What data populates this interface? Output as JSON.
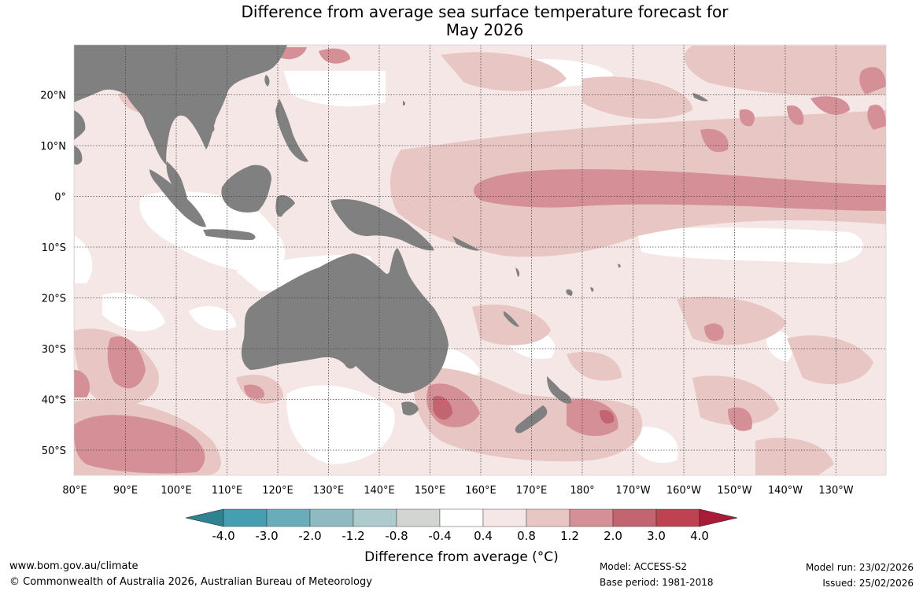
{
  "title": {
    "line1": "Difference from average sea surface temperature forecast for",
    "line2": "May 2026"
  },
  "map": {
    "lat_labels": [
      "20°N",
      "10°N",
      "0°",
      "10°S",
      "20°S",
      "30°S",
      "40°S",
      "50°S"
    ],
    "lon_labels": [
      "80°E",
      "90°E",
      "100°E",
      "110°E",
      "120°E",
      "130°E",
      "140°E",
      "150°E",
      "160°E",
      "170°E",
      "180°",
      "170°W",
      "160°W",
      "150°W",
      "140°W",
      "130°W"
    ],
    "colors": {
      "land": "#808080",
      "ocean_neutral": "#ffffff",
      "c04_08": "#f4e7e6",
      "c08_12": "#e8c6c4",
      "c12_20": "#d58f96",
      "c20_30": "#c36571",
      "grid": "#444444"
    }
  },
  "colorbar": {
    "ticks": [
      "-4.0",
      "-3.0",
      "-2.0",
      "-1.2",
      "-0.8",
      "-0.4",
      "0.4",
      "0.8",
      "1.2",
      "2.0",
      "3.0",
      "4.0"
    ],
    "colors": [
      "#2f8390",
      "#459fb0",
      "#69adbb",
      "#8fbac1",
      "#adcacc",
      "#d3d5d3",
      "#ffffff",
      "#f4e7e6",
      "#e8c6c4",
      "#d58f96",
      "#c36571",
      "#bf4252",
      "#a81b39"
    ],
    "title": "Difference from average (°C)"
  },
  "footer": {
    "url": "www.bom.gov.au/climate",
    "copyright": "© Commonwealth of Australia 2026, Australian Bureau of Meteorology",
    "model": "Model: ACCESS-S2",
    "base_period": "Base period: 1981-2018",
    "model_run": "Model run: 23/02/2026",
    "issued": "Issued: 25/02/2026"
  }
}
